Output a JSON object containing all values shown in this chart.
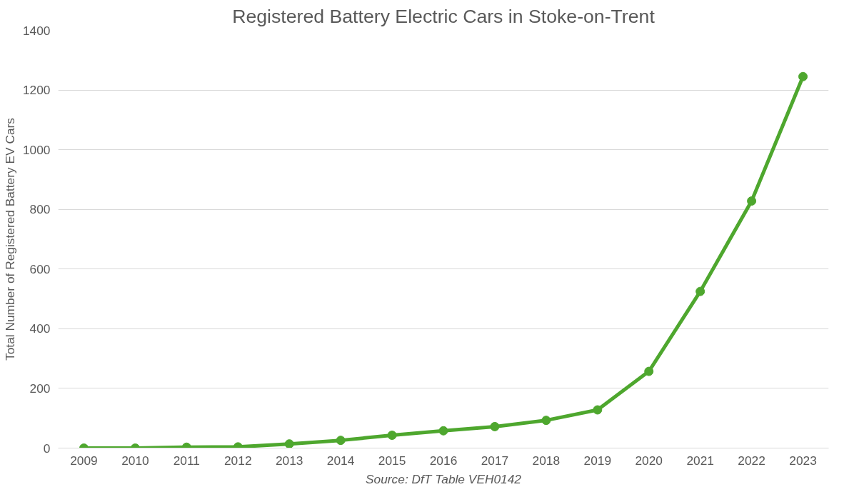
{
  "chart_data": {
    "type": "line",
    "title": "Registered Battery Electric Cars in Stoke-on-Trent",
    "ylabel": "Total Number of Registered Battery EV Cars",
    "categories": [
      "2009",
      "2010",
      "2011",
      "2012",
      "2013",
      "2014",
      "2015",
      "2016",
      "2017",
      "2018",
      "2019",
      "2020",
      "2021",
      "2022",
      "2023"
    ],
    "series": [
      {
        "color": "#4ea72e",
        "values": [
          0,
          0,
          3,
          4,
          14,
          26,
          43,
          58,
          72,
          93,
          128,
          257,
          525,
          828,
          1245
        ]
      }
    ],
    "ylim": [
      0,
      1400
    ],
    "yticks": [
      0,
      200,
      400,
      600,
      800,
      1000,
      1200,
      1400
    ],
    "grid": "y",
    "marker": "circle",
    "line_style": "solid",
    "annotations": [
      "Source: DfT Table VEH0142"
    ]
  }
}
